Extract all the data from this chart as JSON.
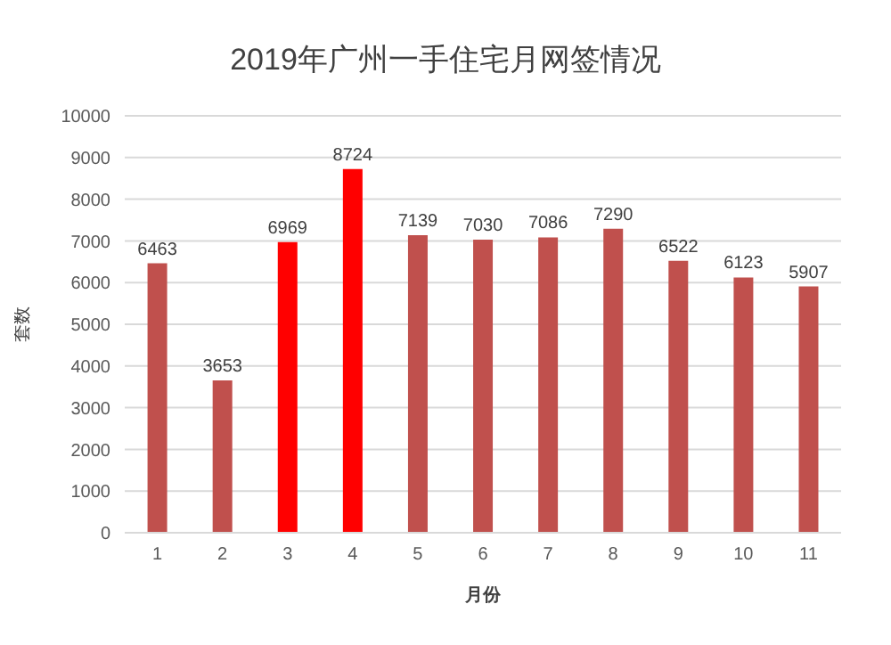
{
  "chart_data": {
    "type": "bar",
    "title": "2019年广州一手住宅月网签情况",
    "xlabel": "月份",
    "ylabel": "套数",
    "categories": [
      "1",
      "2",
      "3",
      "4",
      "5",
      "6",
      "7",
      "8",
      "9",
      "10",
      "11"
    ],
    "values": [
      6463,
      3653,
      6969,
      8724,
      7139,
      7030,
      7086,
      7290,
      6522,
      6123,
      5907
    ],
    "colors": [
      "#c0504d",
      "#c0504d",
      "#ff0000",
      "#ff0000",
      "#c0504d",
      "#c0504d",
      "#c0504d",
      "#c0504d",
      "#c0504d",
      "#c0504d",
      "#c0504d"
    ],
    "ylim": [
      0,
      10000
    ],
    "yticks": [
      0,
      1000,
      2000,
      3000,
      4000,
      5000,
      6000,
      7000,
      8000,
      9000,
      10000
    ],
    "grid": "y",
    "data_labels": true
  }
}
